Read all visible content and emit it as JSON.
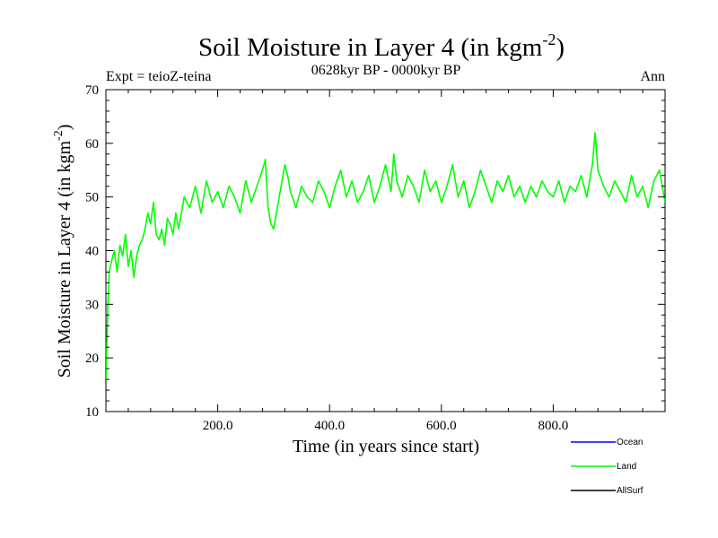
{
  "chart_data": {
    "type": "line",
    "title": "Soil Moisture in Layer 4 (in kgm",
    "title_sup": "-2",
    "title_close": ")",
    "subtitle_left": "Expt = teioZ-teina",
    "subtitle_center": "0628kyr BP - 0000kyr BP",
    "subtitle_right": "Ann",
    "xlabel": "Time (in years since start)",
    "ylabel": "Soil Moisture in Layer 4 (in kgm",
    "ylabel_sup": "-2",
    "ylabel_close": ")",
    "xlim": [
      0,
      1000
    ],
    "ylim": [
      10,
      70
    ],
    "xticks": [
      200,
      400,
      600,
      800
    ],
    "xtick_labels": [
      "200.0",
      "400.0",
      "600.0",
      "800.0"
    ],
    "yticks": [
      10,
      20,
      30,
      40,
      50,
      60,
      70
    ],
    "ytick_labels": [
      "10",
      "20",
      "30",
      "40",
      "50",
      "60",
      "70"
    ],
    "series": [
      {
        "name": "Ocean",
        "color": "#0000ff",
        "x": [],
        "values": []
      },
      {
        "name": "Land",
        "color": "#00ff00",
        "x": [
          0,
          3,
          6,
          10,
          15,
          20,
          25,
          30,
          35,
          40,
          45,
          50,
          55,
          60,
          65,
          70,
          75,
          80,
          85,
          90,
          95,
          100,
          105,
          110,
          115,
          120,
          125,
          130,
          140,
          150,
          160,
          170,
          180,
          190,
          200,
          210,
          220,
          230,
          240,
          250,
          260,
          270,
          280,
          285,
          290,
          295,
          300,
          310,
          320,
          325,
          330,
          340,
          350,
          360,
          370,
          380,
          390,
          400,
          410,
          420,
          430,
          440,
          450,
          460,
          470,
          480,
          490,
          500,
          510,
          515,
          520,
          530,
          540,
          550,
          560,
          570,
          580,
          590,
          600,
          610,
          620,
          630,
          640,
          650,
          660,
          670,
          680,
          690,
          700,
          710,
          720,
          730,
          740,
          750,
          760,
          770,
          780,
          790,
          800,
          810,
          820,
          830,
          840,
          850,
          860,
          870,
          875,
          880,
          890,
          900,
          910,
          920,
          930,
          940,
          950,
          960,
          970,
          980,
          990,
          1000
        ],
        "values": [
          16,
          28,
          36,
          38,
          40,
          36,
          41,
          39,
          43,
          37,
          40,
          35,
          39,
          41,
          42,
          44,
          47,
          45,
          49,
          43,
          42,
          44,
          41,
          46,
          45,
          43,
          47,
          44,
          50,
          48,
          52,
          47,
          53,
          49,
          51,
          48,
          52,
          50,
          47,
          53,
          49,
          52,
          55,
          57,
          48,
          45,
          44,
          50,
          56,
          54,
          51,
          48,
          52,
          50,
          49,
          53,
          51,
          48,
          52,
          55,
          50,
          53,
          49,
          51,
          54,
          49,
          52,
          56,
          51,
          58,
          53,
          50,
          54,
          52,
          49,
          55,
          51,
          53,
          49,
          52,
          56,
          50,
          53,
          48,
          51,
          55,
          52,
          49,
          53,
          51,
          54,
          50,
          52,
          49,
          52,
          50,
          53,
          51,
          50,
          53,
          49,
          52,
          51,
          54,
          50,
          56,
          62,
          55,
          52,
          50,
          53,
          51,
          49,
          54,
          50,
          52,
          48,
          53,
          55,
          49
        ]
      },
      {
        "name": "AllSurf",
        "color": "#000000",
        "x": [],
        "values": []
      }
    ],
    "legend_position": "bottom-right"
  }
}
